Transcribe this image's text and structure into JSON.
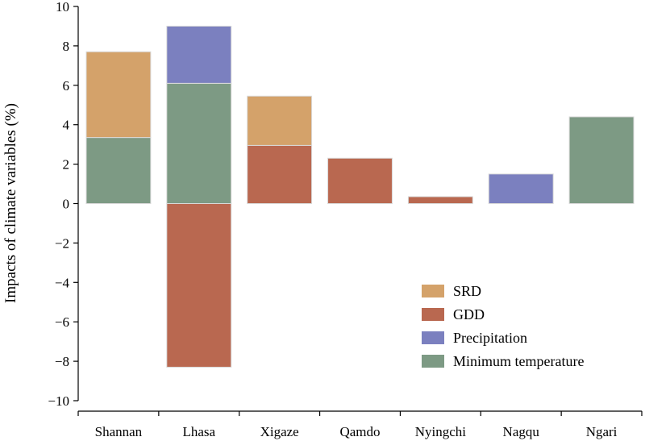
{
  "chart_data": {
    "type": "bar",
    "stacked": true,
    "title": "",
    "xlabel": "",
    "ylabel": "Impacts of climate variables (%)",
    "ylim": [
      -10,
      10
    ],
    "yticks": [
      10,
      8,
      6,
      4,
      2,
      0,
      -2,
      -4,
      -6,
      -8,
      -10
    ],
    "ytick_labels": [
      "10",
      "8",
      "6",
      "4",
      "2",
      "0",
      "−2",
      "−4",
      "−6",
      "−8",
      "−10"
    ],
    "grid": false,
    "legend_position": "bottom-right",
    "categories": [
      "Shannan",
      "Lhasa",
      "Xigaze",
      "Qamdo",
      "Nyingchi",
      "Nagqu",
      "Ngari"
    ],
    "series": [
      {
        "name": "SRD",
        "color": "#d4a26a",
        "values": [
          4.35,
          0,
          2.5,
          0,
          0,
          0,
          0
        ]
      },
      {
        "name": "GDD",
        "color": "#b96850",
        "values": [
          0,
          -8.3,
          2.95,
          2.3,
          0.35,
          0,
          0
        ]
      },
      {
        "name": "Precipitation",
        "color": "#7b80bf",
        "values": [
          0,
          2.9,
          0,
          0,
          0,
          1.5,
          0
        ]
      },
      {
        "name": "Minimum temperature",
        "color": "#7d9a84",
        "values": [
          3.35,
          6.1,
          0,
          0,
          0,
          0,
          4.4
        ]
      }
    ],
    "stack_order": [
      "Minimum temperature",
      "GDD",
      "SRD",
      "Precipitation"
    ]
  }
}
